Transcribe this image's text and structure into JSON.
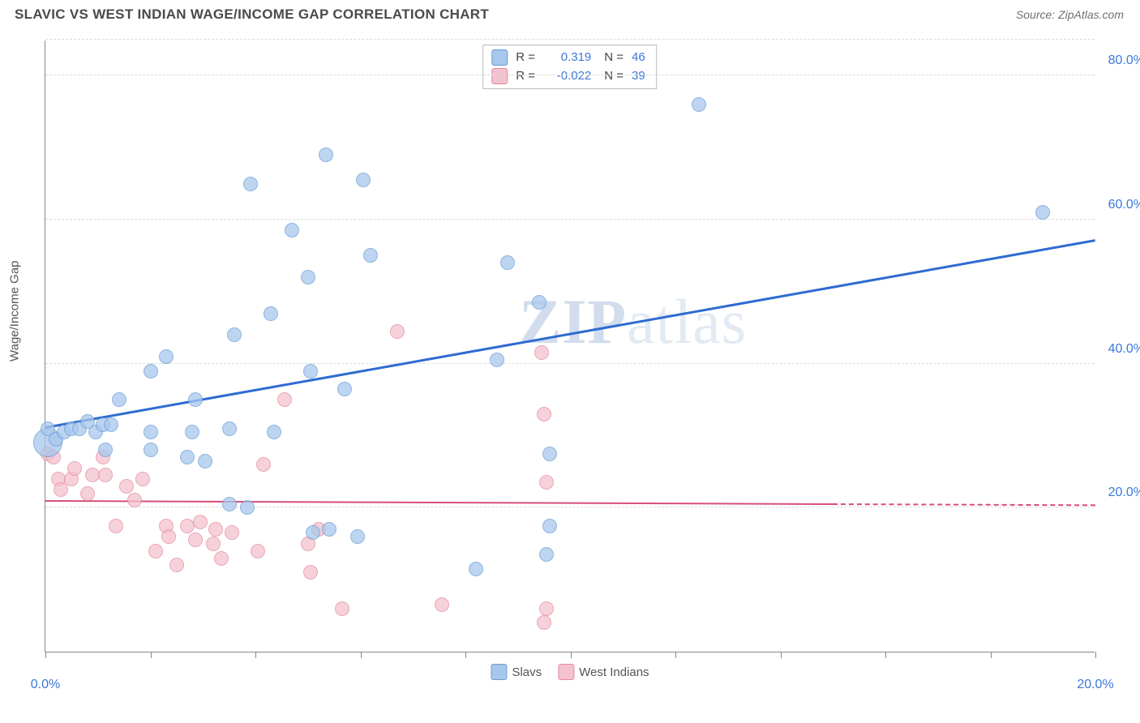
{
  "header": {
    "title": "SLAVIC VS WEST INDIAN WAGE/INCOME GAP CORRELATION CHART",
    "source_label": "Source: ZipAtlas.com"
  },
  "watermark": {
    "bold": "ZIP",
    "rest": "atlas"
  },
  "chart": {
    "type": "scatter",
    "ylabel": "Wage/Income Gap",
    "xlim": [
      0,
      20
    ],
    "ylim": [
      0,
      85
    ],
    "x_ticks_minor": [
      0,
      2,
      4,
      6,
      8,
      10,
      12,
      14,
      16,
      18,
      20
    ],
    "x_tick_labels": [
      {
        "x": 0,
        "text": "0.0%"
      },
      {
        "x": 20,
        "text": "20.0%"
      }
    ],
    "y_gridlines": [
      20,
      40,
      60,
      80,
      85
    ],
    "y_tick_labels": [
      {
        "y": 20,
        "text": "20.0%"
      },
      {
        "y": 40,
        "text": "40.0%"
      },
      {
        "y": 60,
        "text": "60.0%"
      },
      {
        "y": 80,
        "text": "80.0%"
      }
    ],
    "background_color": "#ffffff",
    "grid_color": "#dcdcdc",
    "axis_color": "#888888",
    "tick_label_color": "#3b78d8",
    "marker_radius": 9,
    "marker_border_width": 1.5,
    "marker_fill_opacity": 0.25,
    "series": [
      {
        "name": "Slavs",
        "label": "Slavs",
        "color_fill": "#a8c7ec",
        "color_border": "#6a9cd4",
        "trend_color": "#2e6bd1",
        "trend_width": 3,
        "trend_y_at_xmin": 31,
        "trend_y_at_xmax": 57,
        "trend_dash_from_x": null,
        "R": "0.319",
        "N": "46",
        "points": [
          {
            "x": 0.05,
            "y": 29,
            "r": 18
          },
          {
            "x": 0.05,
            "y": 31
          },
          {
            "x": 0.2,
            "y": 29.5
          },
          {
            "x": 0.35,
            "y": 30.5
          },
          {
            "x": 0.5,
            "y": 31
          },
          {
            "x": 0.65,
            "y": 31
          },
          {
            "x": 0.8,
            "y": 32
          },
          {
            "x": 0.95,
            "y": 30.5
          },
          {
            "x": 1.1,
            "y": 31.5
          },
          {
            "x": 1.25,
            "y": 31.5
          },
          {
            "x": 1.15,
            "y": 28
          },
          {
            "x": 1.4,
            "y": 35
          },
          {
            "x": 2.0,
            "y": 28
          },
          {
            "x": 2.0,
            "y": 30.5
          },
          {
            "x": 2.0,
            "y": 39
          },
          {
            "x": 2.3,
            "y": 41
          },
          {
            "x": 2.7,
            "y": 27
          },
          {
            "x": 2.8,
            "y": 30.5
          },
          {
            "x": 2.85,
            "y": 35
          },
          {
            "x": 3.05,
            "y": 26.5
          },
          {
            "x": 3.5,
            "y": 20.5
          },
          {
            "x": 3.5,
            "y": 31
          },
          {
            "x": 3.6,
            "y": 44
          },
          {
            "x": 3.85,
            "y": 20
          },
          {
            "x": 3.9,
            "y": 65
          },
          {
            "x": 4.3,
            "y": 47
          },
          {
            "x": 4.35,
            "y": 30.5
          },
          {
            "x": 4.7,
            "y": 58.5
          },
          {
            "x": 5.0,
            "y": 52
          },
          {
            "x": 5.05,
            "y": 39
          },
          {
            "x": 5.1,
            "y": 16.5
          },
          {
            "x": 5.35,
            "y": 69
          },
          {
            "x": 5.4,
            "y": 17
          },
          {
            "x": 5.7,
            "y": 36.5
          },
          {
            "x": 5.95,
            "y": 16
          },
          {
            "x": 6.05,
            "y": 65.5
          },
          {
            "x": 6.2,
            "y": 55
          },
          {
            "x": 8.2,
            "y": 11.5
          },
          {
            "x": 8.6,
            "y": 40.5
          },
          {
            "x": 8.8,
            "y": 54
          },
          {
            "x": 9.4,
            "y": 48.5
          },
          {
            "x": 9.6,
            "y": 27.5
          },
          {
            "x": 9.6,
            "y": 17.5
          },
          {
            "x": 9.55,
            "y": 13.5
          },
          {
            "x": 12.45,
            "y": 76
          },
          {
            "x": 19.0,
            "y": 61
          }
        ]
      },
      {
        "name": "West Indians",
        "label": "West Indians",
        "color_fill": "#f4c2ce",
        "color_border": "#e38aa0",
        "trend_color": "#d84e78",
        "trend_width": 2.5,
        "trend_y_at_xmin": 20.8,
        "trend_y_at_xmax": 20.2,
        "trend_dash_from_x": 15,
        "R": "-0.022",
        "N": "39",
        "points": [
          {
            "x": 0.05,
            "y": 27.5
          },
          {
            "x": 0.15,
            "y": 27
          },
          {
            "x": 0.25,
            "y": 24
          },
          {
            "x": 0.3,
            "y": 22.5
          },
          {
            "x": 0.5,
            "y": 24
          },
          {
            "x": 0.55,
            "y": 25.5
          },
          {
            "x": 0.8,
            "y": 22
          },
          {
            "x": 0.9,
            "y": 24.5
          },
          {
            "x": 1.1,
            "y": 27
          },
          {
            "x": 1.15,
            "y": 24.5
          },
          {
            "x": 1.35,
            "y": 17.5
          },
          {
            "x": 1.55,
            "y": 23
          },
          {
            "x": 1.7,
            "y": 21
          },
          {
            "x": 1.85,
            "y": 24
          },
          {
            "x": 2.1,
            "y": 14
          },
          {
            "x": 2.3,
            "y": 17.5
          },
          {
            "x": 2.35,
            "y": 16
          },
          {
            "x": 2.5,
            "y": 12
          },
          {
            "x": 2.7,
            "y": 17.5
          },
          {
            "x": 2.85,
            "y": 15.5
          },
          {
            "x": 2.95,
            "y": 18
          },
          {
            "x": 3.2,
            "y": 15
          },
          {
            "x": 3.25,
            "y": 17
          },
          {
            "x": 3.35,
            "y": 13
          },
          {
            "x": 3.55,
            "y": 16.5
          },
          {
            "x": 4.05,
            "y": 14
          },
          {
            "x": 4.15,
            "y": 26
          },
          {
            "x": 4.55,
            "y": 35
          },
          {
            "x": 5.0,
            "y": 15
          },
          {
            "x": 5.05,
            "y": 11
          },
          {
            "x": 5.2,
            "y": 17
          },
          {
            "x": 5.65,
            "y": 6
          },
          {
            "x": 6.7,
            "y": 44.5
          },
          {
            "x": 7.55,
            "y": 6.5
          },
          {
            "x": 9.45,
            "y": 41.5
          },
          {
            "x": 9.5,
            "y": 33
          },
          {
            "x": 9.55,
            "y": 23.5
          },
          {
            "x": 9.55,
            "y": 6
          },
          {
            "x": 9.5,
            "y": 4
          }
        ]
      }
    ]
  }
}
